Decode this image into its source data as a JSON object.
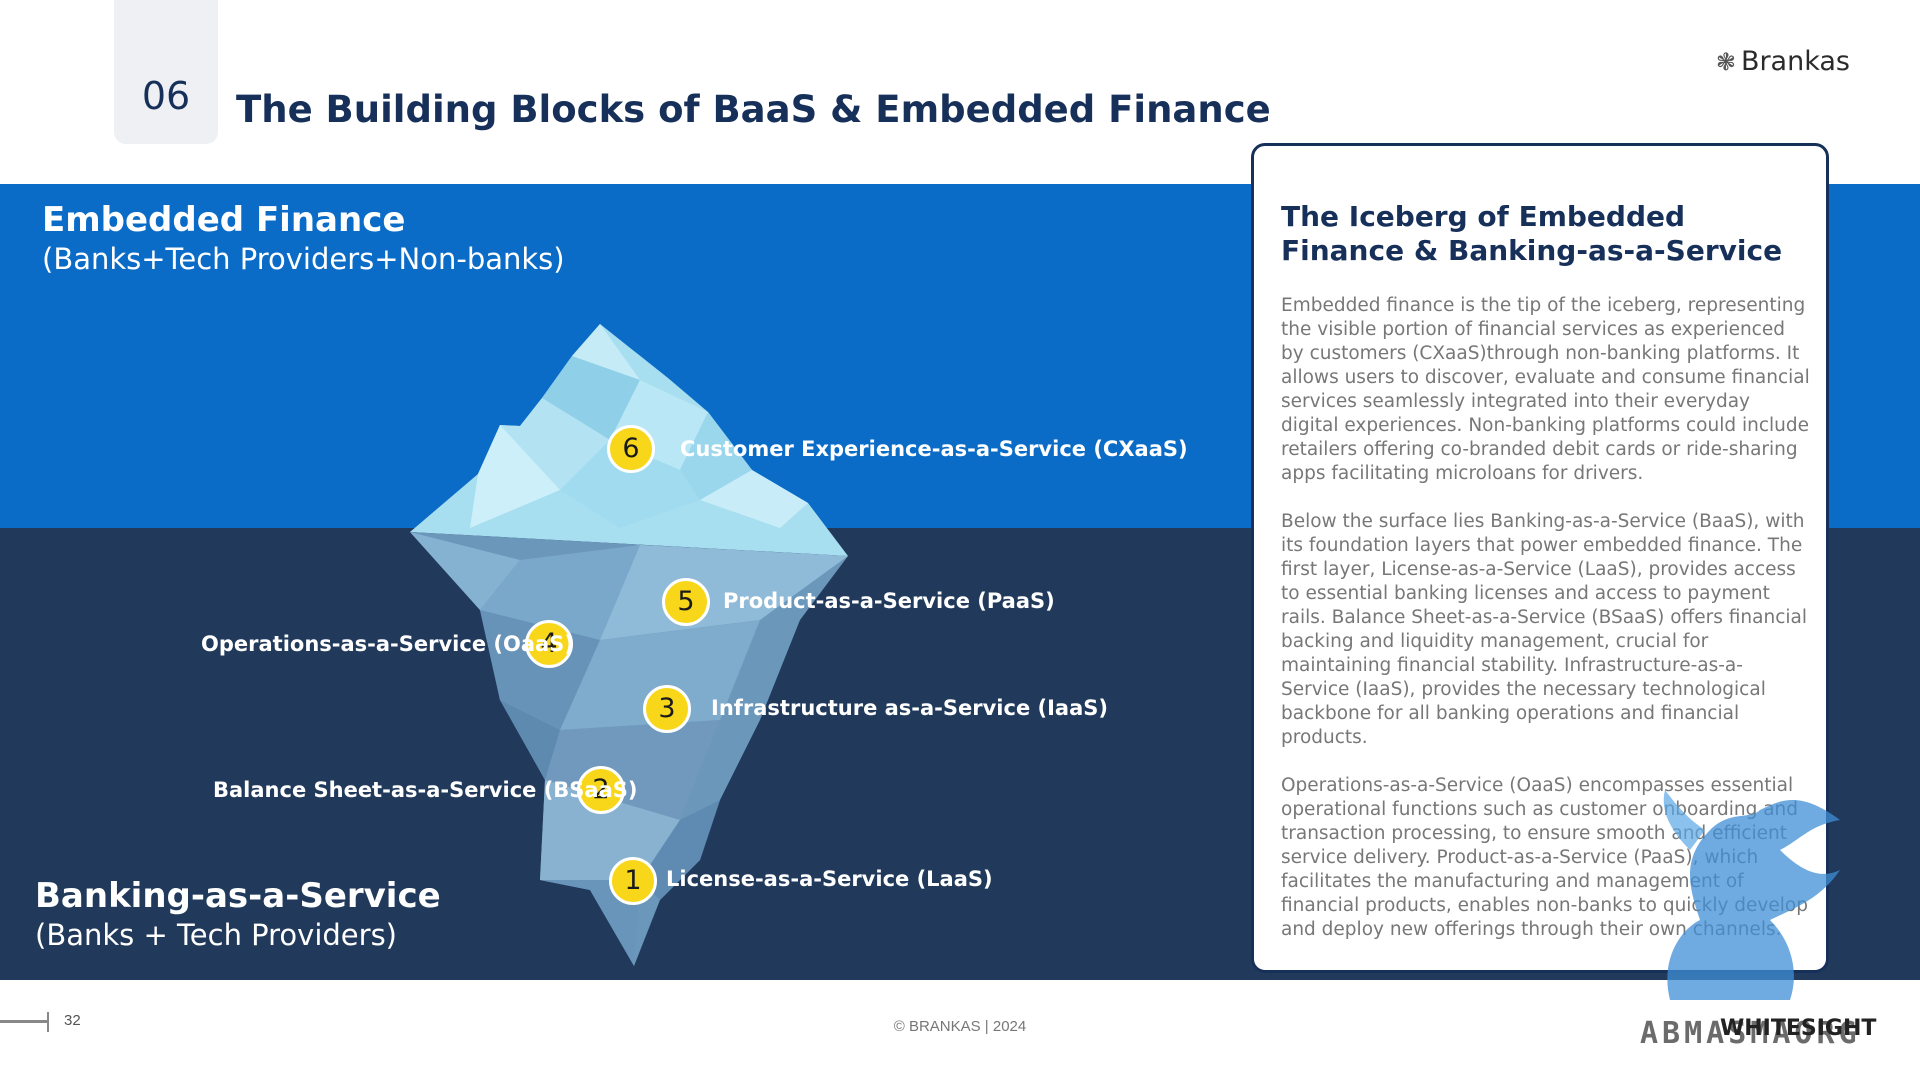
{
  "header": {
    "slide_number": "06",
    "title": "The Building Blocks of BaaS & Embedded Finance",
    "brand": "Brankas",
    "brand_icon": "flower-logo-icon"
  },
  "sections": {
    "embedded_finance": {
      "title": "Embedded Finance",
      "subtitle": "(Banks+Tech Providers+Non-banks)",
      "color": "#0b6cc7"
    },
    "baas": {
      "title": "Banking-as-a-Service",
      "subtitle": "(Banks + Tech Providers)",
      "color": "#213a5b"
    }
  },
  "layers": [
    {
      "number": "6",
      "label": "Customer Experience-as-a-Service (CXaaS)"
    },
    {
      "number": "5",
      "label": "Product-as-a-Service (PaaS)"
    },
    {
      "number": "4",
      "label": "Operations-as-a-Service (OaaS)"
    },
    {
      "number": "3",
      "label": "Infrastructure as-a-Service (IaaS)"
    },
    {
      "number": "2",
      "label": "Balance Sheet-as-a-Service (BSaaS)"
    },
    {
      "number": "1",
      "label": "License-as-a-Service (LaaS)"
    }
  ],
  "badge_color": "#f8d71a",
  "card": {
    "title": "The Iceberg of Embedded Finance & Banking-as-a-Service",
    "paragraphs": [
      "Embedded finance is the tip of the iceberg, representing the visible portion of financial services as experienced by customers (CXaaS)through non-banking platforms. It allows users to discover, evaluate and consume financial services seamlessly integrated into their everyday digital experiences. Non-banking platforms could include retailers offering co-branded debit cards or ride-sharing apps facilitating microloans for drivers.",
      "Below the surface lies Banking-as-a-Service (BaaS), with its foundation layers  that power embedded finance. The first layer, License-as-a-Service (LaaS), provides access to essential banking licenses and access to payment rails. Balance Sheet-as-a-Service (BSaaS) offers financial backing and liquidity management, crucial for maintaining financial stability. Infrastructure-as-a-Service (IaaS), provides  the necessary technological backbone for all banking operations and financial products.",
      "Operations-as-a-Service (OaaS) encompasses essential operational functions such as customer onboarding and transaction processing, to ensure smooth and efficient service delivery. Product-as-a-Service (PaaS), which facilitates the manufacturing and management of financial products, enables non-banks to quickly develop and deploy new offerings through their own channels."
    ]
  },
  "footer": {
    "page_number": "32",
    "copyright": "© BRANKAS | 2024"
  },
  "watermark": {
    "text": "ABMASMAORG",
    "overlay": "WHITESIGHT"
  }
}
